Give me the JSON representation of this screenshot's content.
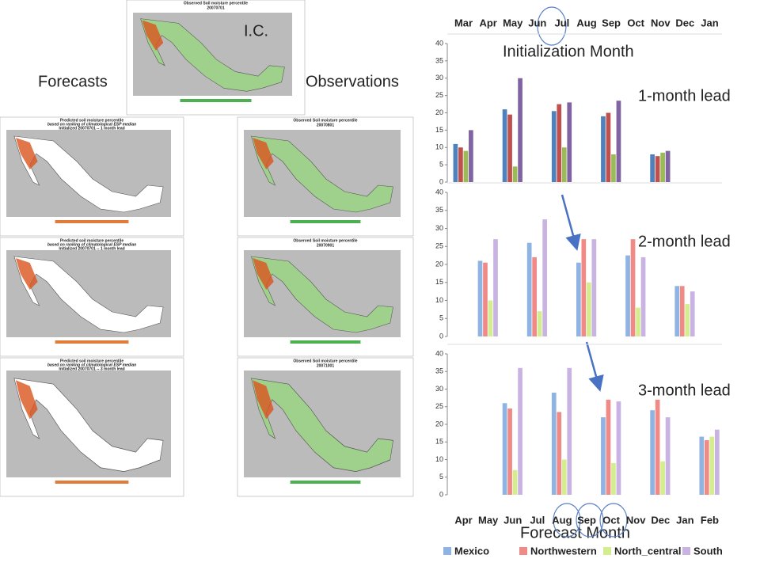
{
  "slide": {
    "ic_label": "I.C.",
    "init_month": "Initialization Month",
    "forecasts": "Forecasts",
    "observations": "Observations",
    "leads": [
      "1-month lead",
      "2-month lead",
      "3-month lead"
    ],
    "forecast_month": "Forecast Month"
  },
  "maps": {
    "obs_title": "Observed Soil moisture percentile",
    "fc_title": "Predicted soil moisture percentile",
    "fc_subtitle": "based on ranking of climatological ESP median",
    "observed": [
      {
        "date": "20070701"
      },
      {
        "date": "20070801"
      },
      {
        "date": "20070901"
      },
      {
        "date": "20071001"
      }
    ],
    "forecast": [
      {
        "init": "Initialized 20070701 -- 1 month lead"
      },
      {
        "init": "Initialized 20070701 -- 1 month lead"
      },
      {
        "init": "Initialized 20070701 -- 3 month lead"
      }
    ]
  },
  "chart_data": [
    {
      "type": "bar",
      "categories": [
        "Mar",
        "Apr",
        "May",
        "Jun",
        "Jul",
        "Aug",
        "Sep",
        "Oct",
        "Nov",
        "Dec",
        "Jan"
      ],
      "ylim": [
        0,
        40
      ],
      "yticks": [
        0,
        5,
        10,
        15,
        20,
        25,
        30,
        35,
        40
      ],
      "grid": false,
      "series": [
        {
          "color": "#4f81bd",
          "values": [
            11,
            null,
            21,
            null,
            20.5,
            null,
            19,
            null,
            8,
            null,
            null
          ]
        },
        {
          "color": "#c0504d",
          "values": [
            10,
            null,
            19.5,
            null,
            22.5,
            null,
            20,
            null,
            7.5,
            null,
            null
          ]
        },
        {
          "color": "#9bbb59",
          "values": [
            9,
            null,
            4.5,
            null,
            10,
            null,
            8,
            null,
            8.5,
            null,
            null
          ]
        },
        {
          "color": "#8064a2",
          "values": [
            15,
            null,
            30,
            null,
            23,
            null,
            23.5,
            null,
            9,
            null,
            null
          ]
        }
      ]
    },
    {
      "type": "bar",
      "categories": [
        null,
        null,
        null,
        null,
        null,
        null,
        null,
        null,
        null,
        null,
        null
      ],
      "ylim": [
        0,
        40
      ],
      "yticks": [
        0,
        5,
        10,
        15,
        20,
        25,
        30,
        35,
        40
      ],
      "grid": false,
      "series": [
        {
          "color": "#8fb4e3",
          "values": [
            null,
            21,
            null,
            26,
            null,
            20.5,
            null,
            22.5,
            null,
            14,
            null
          ]
        },
        {
          "color": "#f08a87",
          "values": [
            null,
            20.5,
            null,
            22,
            null,
            27,
            null,
            27,
            null,
            14,
            null
          ]
        },
        {
          "color": "#d4ee8f",
          "values": [
            null,
            10,
            null,
            7,
            null,
            15,
            null,
            8,
            null,
            9,
            null
          ]
        },
        {
          "color": "#c9b3e3",
          "values": [
            null,
            27,
            null,
            32.5,
            null,
            27,
            null,
            22,
            null,
            12.5,
            null
          ]
        }
      ]
    },
    {
      "type": "bar",
      "categories": [
        "Apr",
        "May",
        "Jun",
        "Jul",
        "Aug",
        "Sep",
        "Oct",
        "Nov",
        "Dec",
        "Jan",
        "Feb"
      ],
      "ylim": [
        0,
        40
      ],
      "yticks": [
        0,
        5,
        10,
        15,
        20,
        25,
        30,
        35,
        40
      ],
      "grid": false,
      "series": [
        {
          "name": "Mexico",
          "color": "#8fb4e3",
          "values": [
            null,
            null,
            26,
            null,
            29,
            null,
            22,
            null,
            24,
            null,
            16.5
          ]
        },
        {
          "name": "Northwestern",
          "color": "#f08a87",
          "values": [
            null,
            null,
            24.5,
            null,
            23.5,
            null,
            27,
            null,
            27,
            null,
            15.5
          ]
        },
        {
          "name": "North_central",
          "color": "#d4ee8f",
          "values": [
            null,
            null,
            7,
            null,
            10,
            null,
            9,
            null,
            9.5,
            null,
            16.5
          ]
        },
        {
          "name": "South",
          "color": "#c9b3e3",
          "values": [
            null,
            null,
            36,
            null,
            36,
            null,
            26.5,
            null,
            22,
            null,
            18.5
          ]
        }
      ]
    }
  ]
}
